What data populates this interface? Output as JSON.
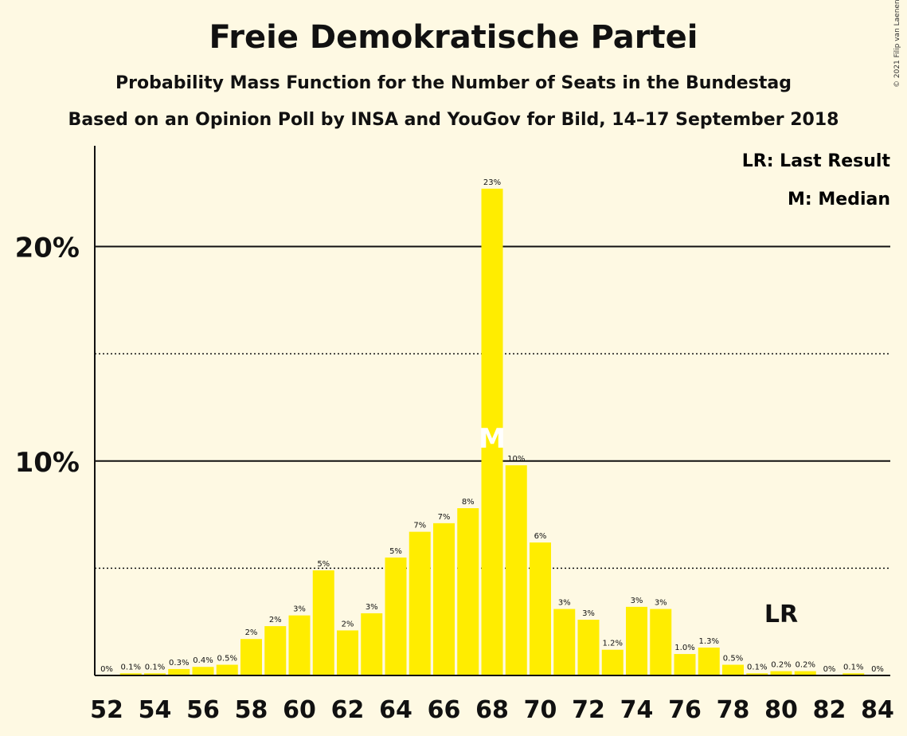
{
  "title": "Freie Demokratische Partei",
  "subtitle": "Probability Mass Function for the Number of Seats in the Bundestag",
  "subtitle2": "Based on an Opinion Poll by INSA and YouGov for Bild, 14–17 September 2018",
  "copyright": "© 2021 Filip van Laenen",
  "legend": {
    "last_result": "LR: Last Result",
    "median": "M: Median"
  },
  "colors": {
    "background": "#fef9e3",
    "bar": "#ffed00",
    "text": "#111111"
  },
  "chart_data": {
    "type": "bar",
    "x": [
      52,
      53,
      54,
      55,
      56,
      57,
      58,
      59,
      60,
      61,
      62,
      63,
      64,
      65,
      66,
      67,
      68,
      69,
      70,
      71,
      72,
      73,
      74,
      75,
      76,
      77,
      78,
      79,
      80,
      81,
      82,
      83,
      84
    ],
    "values": [
      0,
      0.1,
      0.1,
      0.3,
      0.4,
      0.5,
      1.7,
      2.3,
      2.8,
      4.9,
      2.1,
      2.9,
      5.5,
      6.7,
      7.1,
      7.8,
      22.7,
      9.8,
      6.2,
      3.1,
      2.6,
      1.2,
      3.2,
      3.1,
      1.0,
      1.3,
      0.5,
      0.1,
      0.2,
      0.2,
      0,
      0.1,
      0
    ],
    "labels": [
      "0%",
      "0.1%",
      "0.1%",
      "0.3%",
      "0.4%",
      "0.5%",
      "2%",
      "2%",
      "3%",
      "5%",
      "2%",
      "3%",
      "5%",
      "7%",
      "7%",
      "8%",
      "23%",
      "10%",
      "6%",
      "3%",
      "3%",
      "1.2%",
      "3%",
      "3%",
      "1.0%",
      "1.3%",
      "0.5%",
      "0.1%",
      "0.2%",
      "0.2%",
      "0%",
      "0.1%",
      "0%"
    ],
    "x_tick_labels": [
      "52",
      "54",
      "56",
      "58",
      "60",
      "62",
      "64",
      "66",
      "68",
      "70",
      "72",
      "74",
      "76",
      "78",
      "80",
      "82",
      "84"
    ],
    "y_tick_labels": [
      "10%",
      "20%"
    ],
    "y_solid_gridlines": [
      10,
      20
    ],
    "y_dotted_gridlines": [
      5,
      15
    ],
    "ylim": [
      0,
      24.7
    ],
    "median_seat": 68,
    "median_marker": "M",
    "last_result_seat": 80,
    "last_result_marker": "LR"
  }
}
